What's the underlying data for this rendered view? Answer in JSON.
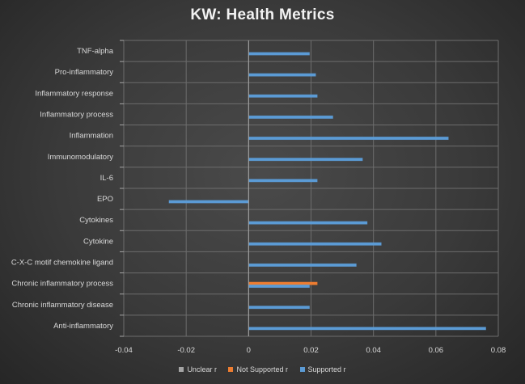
{
  "chart_data": {
    "type": "bar",
    "orientation": "horizontal",
    "title": "KW: Health Metrics",
    "xlabel": "",
    "ylabel": "",
    "xlim": [
      -0.04,
      0.08
    ],
    "x_ticks": [
      "-0.04",
      "-0.02",
      "0",
      "0.02",
      "0.04",
      "0.06",
      "0.08"
    ],
    "x_tick_values": [
      -0.04,
      -0.02,
      0,
      0.02,
      0.04,
      0.06,
      0.08
    ],
    "grid": true,
    "legend_position": "bottom",
    "categories": [
      "TNF-alpha",
      "Pro-inflammatory",
      "Inflammatory response",
      "Inflammatory process",
      "Inflammation",
      "Immunomodulatory",
      "IL-6",
      "EPO",
      "Cytokines",
      "Cytokine",
      "C-X-C motif chemokine ligand",
      "Chronic inflammatory process",
      "Chronic inflammatory disease",
      "Anti-inflammatory"
    ],
    "series": [
      {
        "name": "Unclear r",
        "color": "#a5a5a5",
        "values": [
          null,
          null,
          null,
          null,
          null,
          null,
          null,
          null,
          null,
          null,
          null,
          null,
          null,
          null
        ]
      },
      {
        "name": "Not Supported r",
        "color": "#ed7d31",
        "values": [
          null,
          null,
          null,
          null,
          null,
          null,
          null,
          null,
          null,
          null,
          null,
          0.022,
          null,
          null
        ]
      },
      {
        "name": "Supported r",
        "color": "#5b9bd5",
        "values": [
          0.0195,
          0.0215,
          0.022,
          0.027,
          0.064,
          0.0365,
          0.022,
          -0.0255,
          0.038,
          0.0425,
          0.0345,
          0.0195,
          0.0195,
          0.076
        ]
      }
    ]
  },
  "colors": {
    "gridline": "#6d6d6d",
    "axis": "#a6a6a6"
  }
}
